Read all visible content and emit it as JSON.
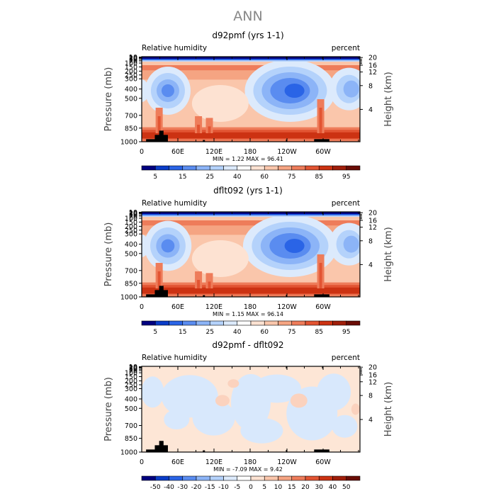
{
  "page": {
    "title": "ANN"
  },
  "chart_data": [
    {
      "type": "heatmap",
      "title": "d92pmf (yrs 1-1)",
      "left_label": "Relative humidity",
      "right_label": "percent",
      "ylabel": "Pressure (mb)",
      "ylabel_right": "Height (km)",
      "x_ticks": [
        "0",
        "60E",
        "120E",
        "180",
        "120W",
        "60W"
      ],
      "y_ticks": [
        "1000",
        "850",
        "700",
        "500",
        "400",
        "300",
        "250",
        "200",
        "150",
        "100",
        "70",
        "50",
        "30",
        "20",
        "10"
      ],
      "height_ticks": [
        "20",
        "16",
        "12",
        "8",
        "4"
      ],
      "stats": "MIN =     1.22   MAX =   96.41",
      "colorbar_labels": [
        "5",
        "15",
        "25",
        "40",
        "60",
        "75",
        "85",
        "95"
      ],
      "colors": [
        "#000080",
        "#0a3cc8",
        "#2a64e6",
        "#5a8cf0",
        "#8cb4f7",
        "#b4d2fb",
        "#dceafc",
        "#ffffff",
        "#fde2d2",
        "#fac6ab",
        "#f5a482",
        "#ee7c5a",
        "#e25432",
        "#cc3212",
        "#a01e0a",
        "#6a0c05"
      ],
      "land_color": "#000000"
    },
    {
      "type": "heatmap",
      "title": "dflt092 (yrs 1-1)",
      "left_label": "Relative humidity",
      "right_label": "percent",
      "ylabel": "Pressure (mb)",
      "ylabel_right": "Height (km)",
      "x_ticks": [
        "0",
        "60E",
        "120E",
        "180",
        "120W",
        "60W"
      ],
      "y_ticks": [
        "1000",
        "850",
        "700",
        "500",
        "400",
        "300",
        "250",
        "200",
        "150",
        "100",
        "70",
        "50",
        "30",
        "20",
        "10"
      ],
      "height_ticks": [
        "20",
        "16",
        "12",
        "8",
        "4"
      ],
      "stats": "MIN =     1.15   MAX =   96.14",
      "colorbar_labels": [
        "5",
        "15",
        "25",
        "40",
        "60",
        "75",
        "85",
        "95"
      ],
      "colors": [
        "#000080",
        "#0a3cc8",
        "#2a64e6",
        "#5a8cf0",
        "#8cb4f7",
        "#b4d2fb",
        "#dceafc",
        "#ffffff",
        "#fde2d2",
        "#fac6ab",
        "#f5a482",
        "#ee7c5a",
        "#e25432",
        "#cc3212",
        "#a01e0a",
        "#6a0c05"
      ],
      "land_color": "#000000"
    },
    {
      "type": "heatmap",
      "title": "d92pmf - dflt092",
      "left_label": "Relative humidity",
      "right_label": "percent",
      "ylabel": "Pressure (mb)",
      "ylabel_right": "Height (km)",
      "x_ticks": [
        "0",
        "60E",
        "120E",
        "180",
        "120W",
        "60W"
      ],
      "y_ticks": [
        "1000",
        "850",
        "700",
        "500",
        "400",
        "300",
        "250",
        "200",
        "150",
        "100",
        "70",
        "50",
        "30",
        "20",
        "10"
      ],
      "height_ticks": [
        "20",
        "16",
        "12",
        "8",
        "4"
      ],
      "stats": "MIN =   -7.09   MAX =    9.42",
      "colorbar_labels": [
        "-50",
        "-40",
        "-30",
        "-20",
        "-15",
        "-10",
        "-5",
        "0",
        "5",
        "10",
        "15",
        "20",
        "30",
        "40",
        "50"
      ],
      "colors": [
        "#000080",
        "#0a3cc8",
        "#2a64e6",
        "#5a8cf0",
        "#8cb4f7",
        "#b4d2fb",
        "#dceafc",
        "#ffffff",
        "#fde2d2",
        "#fac6ab",
        "#f5a482",
        "#ee7c5a",
        "#e25432",
        "#cc3212",
        "#a01e0a",
        "#6a0c05"
      ],
      "land_color": "#000000"
    }
  ]
}
